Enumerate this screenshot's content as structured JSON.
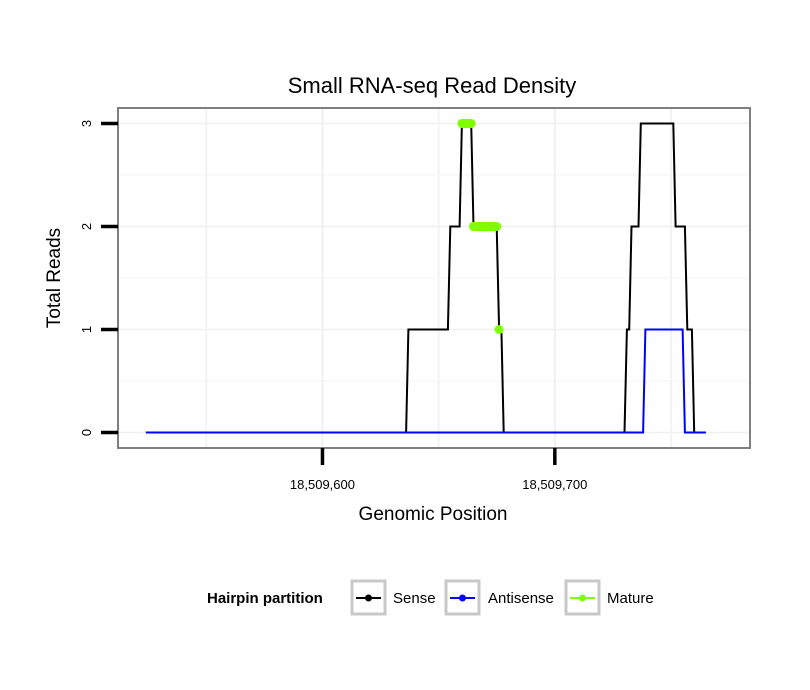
{
  "chart_data": {
    "type": "line",
    "title": "Small RNA-seq Read Density",
    "xlabel": "Genomic Position",
    "ylabel": "Total Reads",
    "xlim": [
      18509512,
      18509784
    ],
    "ylim": [
      -0.15,
      3.15
    ],
    "x_ticks": [
      {
        "value": 18509600,
        "label": "18,509,600"
      },
      {
        "value": 18509700,
        "label": "18,509,700"
      }
    ],
    "x_minor_gridlines": [
      18509550,
      18509650,
      18509750
    ],
    "y_ticks": [
      {
        "value": 0,
        "label": "0"
      },
      {
        "value": 1,
        "label": "1"
      },
      {
        "value": 2,
        "label": "2"
      },
      {
        "value": 3,
        "label": "3"
      }
    ],
    "legend": {
      "title": "Hairpin partition",
      "position": "bottom",
      "entries": [
        {
          "name": "Sense",
          "color": "#000000"
        },
        {
          "name": "Antisense",
          "color": "#0000ff"
        },
        {
          "name": "Mature",
          "color": "#7fff00"
        }
      ]
    },
    "series": [
      {
        "name": "Sense",
        "color": "#000000",
        "points": [
          [
            18509524,
            0
          ],
          [
            18509636,
            0
          ],
          [
            18509637,
            1
          ],
          [
            18509654,
            1
          ],
          [
            18509655,
            2
          ],
          [
            18509659,
            2
          ],
          [
            18509660,
            3
          ],
          [
            18509664,
            3
          ],
          [
            18509665,
            2
          ],
          [
            18509675,
            2
          ],
          [
            18509676,
            1
          ],
          [
            18509677,
            1
          ],
          [
            18509678,
            0
          ],
          [
            18509730,
            0
          ],
          [
            18509731,
            1
          ],
          [
            18509732,
            1
          ],
          [
            18509733,
            2
          ],
          [
            18509736,
            2
          ],
          [
            18509737,
            3
          ],
          [
            18509751,
            3
          ],
          [
            18509752,
            2
          ],
          [
            18509756,
            2
          ],
          [
            18509757,
            1
          ],
          [
            18509759,
            1
          ],
          [
            18509760,
            0
          ]
        ]
      },
      {
        "name": "Antisense",
        "color": "#0000ff",
        "points": [
          [
            18509524,
            0
          ],
          [
            18509738,
            0
          ],
          [
            18509739,
            1
          ],
          [
            18509755,
            1
          ],
          [
            18509756,
            0
          ],
          [
            18509765,
            0
          ]
        ]
      },
      {
        "name": "Mature",
        "color": "#7fff00",
        "segments": [
          {
            "x_start": 18509660,
            "x_end": 18509664,
            "y": 3
          },
          {
            "x_start": 18509665,
            "x_end": 18509675,
            "y": 2
          },
          {
            "x_start": 18509676,
            "x_end": 18509676,
            "y": 1
          }
        ]
      }
    ]
  }
}
